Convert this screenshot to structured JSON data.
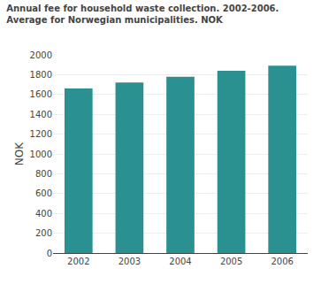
{
  "chart_data": {
    "type": "bar",
    "title": "Annual fee for household waste collection. 2002-2006.",
    "subtitle": "Average for Norwegian municipalities. NOK",
    "ylabel": "NOK",
    "categories": [
      "2002",
      "2003",
      "2004",
      "2005",
      "2006"
    ],
    "values": [
      1660,
      1720,
      1780,
      1840,
      1890
    ],
    "color": "#2a9090",
    "ylim": [
      0,
      2000
    ],
    "yticks": [
      0,
      200,
      400,
      600,
      800,
      1000,
      1200,
      1400,
      1600,
      1800,
      2000
    ],
    "grid": true
  }
}
